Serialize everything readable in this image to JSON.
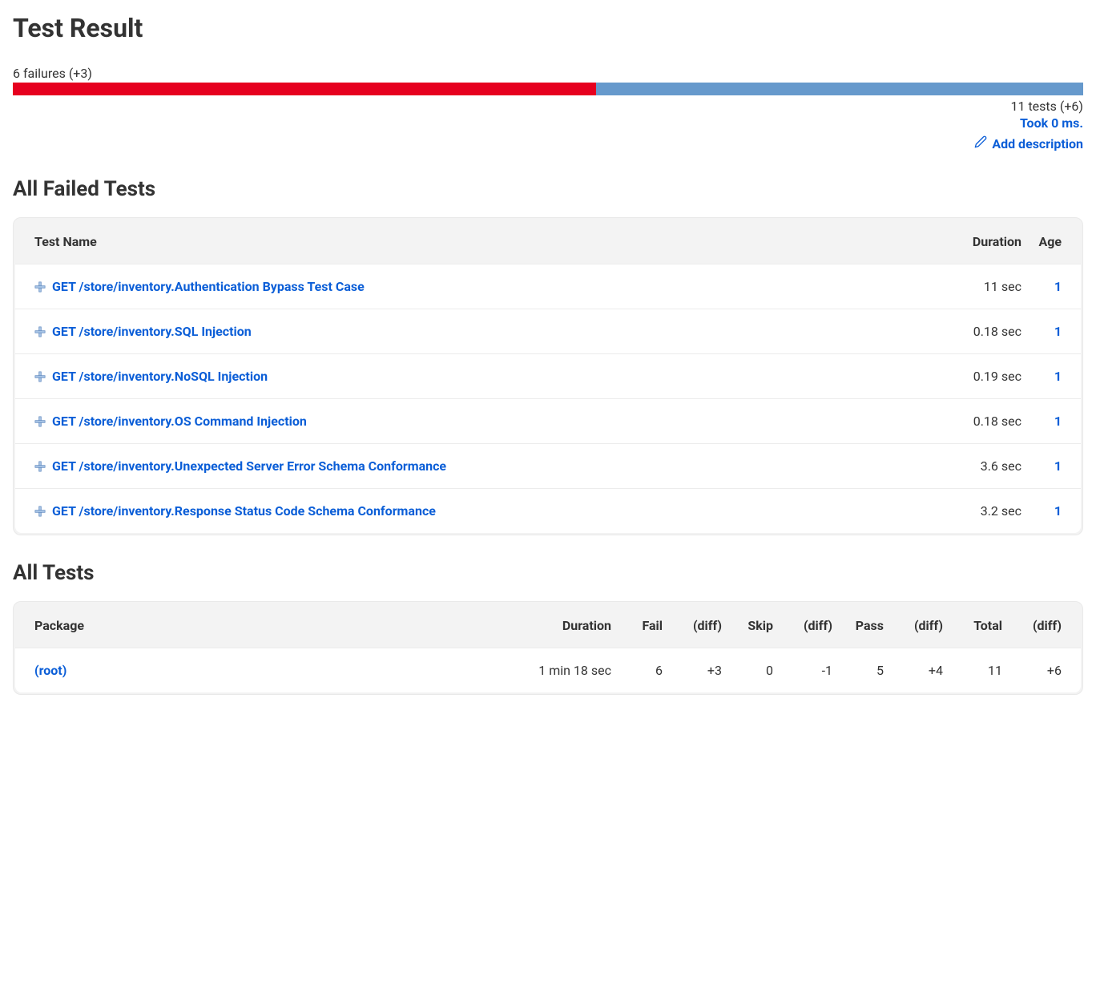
{
  "colors": {
    "fail_bar": "#e6001f",
    "pass_bar": "#6699cc",
    "link": "#0b5ed7",
    "text": "#333333",
    "table_bg": "#f3f3f3",
    "row_border": "#ececec"
  },
  "header": {
    "title": "Test Result",
    "failures_text": "6 failures (+3)",
    "tests_text": "11 tests (+6)",
    "took_text": "Took 0 ms.",
    "add_description_label": "Add description"
  },
  "progress": {
    "fail_pct": 54.5,
    "pass_pct": 45.5
  },
  "failed_tests_section": {
    "heading": "All Failed Tests",
    "columns": {
      "name": "Test Name",
      "duration": "Duration",
      "age": "Age"
    },
    "rows": [
      {
        "name": "GET /store/inventory.Authentication Bypass Test Case",
        "duration": "11 sec",
        "age": "1"
      },
      {
        "name": "GET /store/inventory.SQL Injection",
        "duration": "0.18 sec",
        "age": "1"
      },
      {
        "name": "GET /store/inventory.NoSQL Injection",
        "duration": "0.19 sec",
        "age": "1"
      },
      {
        "name": "GET /store/inventory.OS Command Injection",
        "duration": "0.18 sec",
        "age": "1"
      },
      {
        "name": "GET /store/inventory.Unexpected Server Error Schema Conformance",
        "duration": "3.6 sec",
        "age": "1"
      },
      {
        "name": "GET /store/inventory.Response Status Code Schema Conformance",
        "duration": "3.2 sec",
        "age": "1"
      }
    ]
  },
  "all_tests_section": {
    "heading": "All Tests",
    "columns": {
      "package": "Package",
      "duration": "Duration",
      "fail": "Fail",
      "fail_diff": "(diff)",
      "skip": "Skip",
      "skip_diff": "(diff)",
      "pass": "Pass",
      "pass_diff": "(diff)",
      "total": "Total",
      "total_diff": "(diff)"
    },
    "rows": [
      {
        "package": "(root)",
        "duration": "1 min 18 sec",
        "fail": "6",
        "fail_diff": "+3",
        "skip": "0",
        "skip_diff": "-1",
        "pass": "5",
        "pass_diff": "+4",
        "total": "11",
        "total_diff": "+6"
      }
    ]
  }
}
